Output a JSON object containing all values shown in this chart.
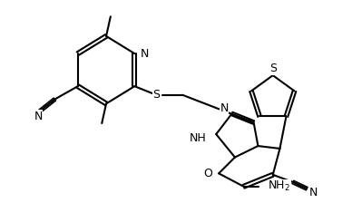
{
  "bg_color": "#ffffff",
  "line_color": "#000000",
  "line_width": 1.5,
  "figsize": [
    3.88,
    2.24
  ],
  "dpi": 100,
  "font_size": 9,
  "xlim": [
    -0.2,
    7.2
  ],
  "ylim": [
    0.8,
    5.4
  ]
}
